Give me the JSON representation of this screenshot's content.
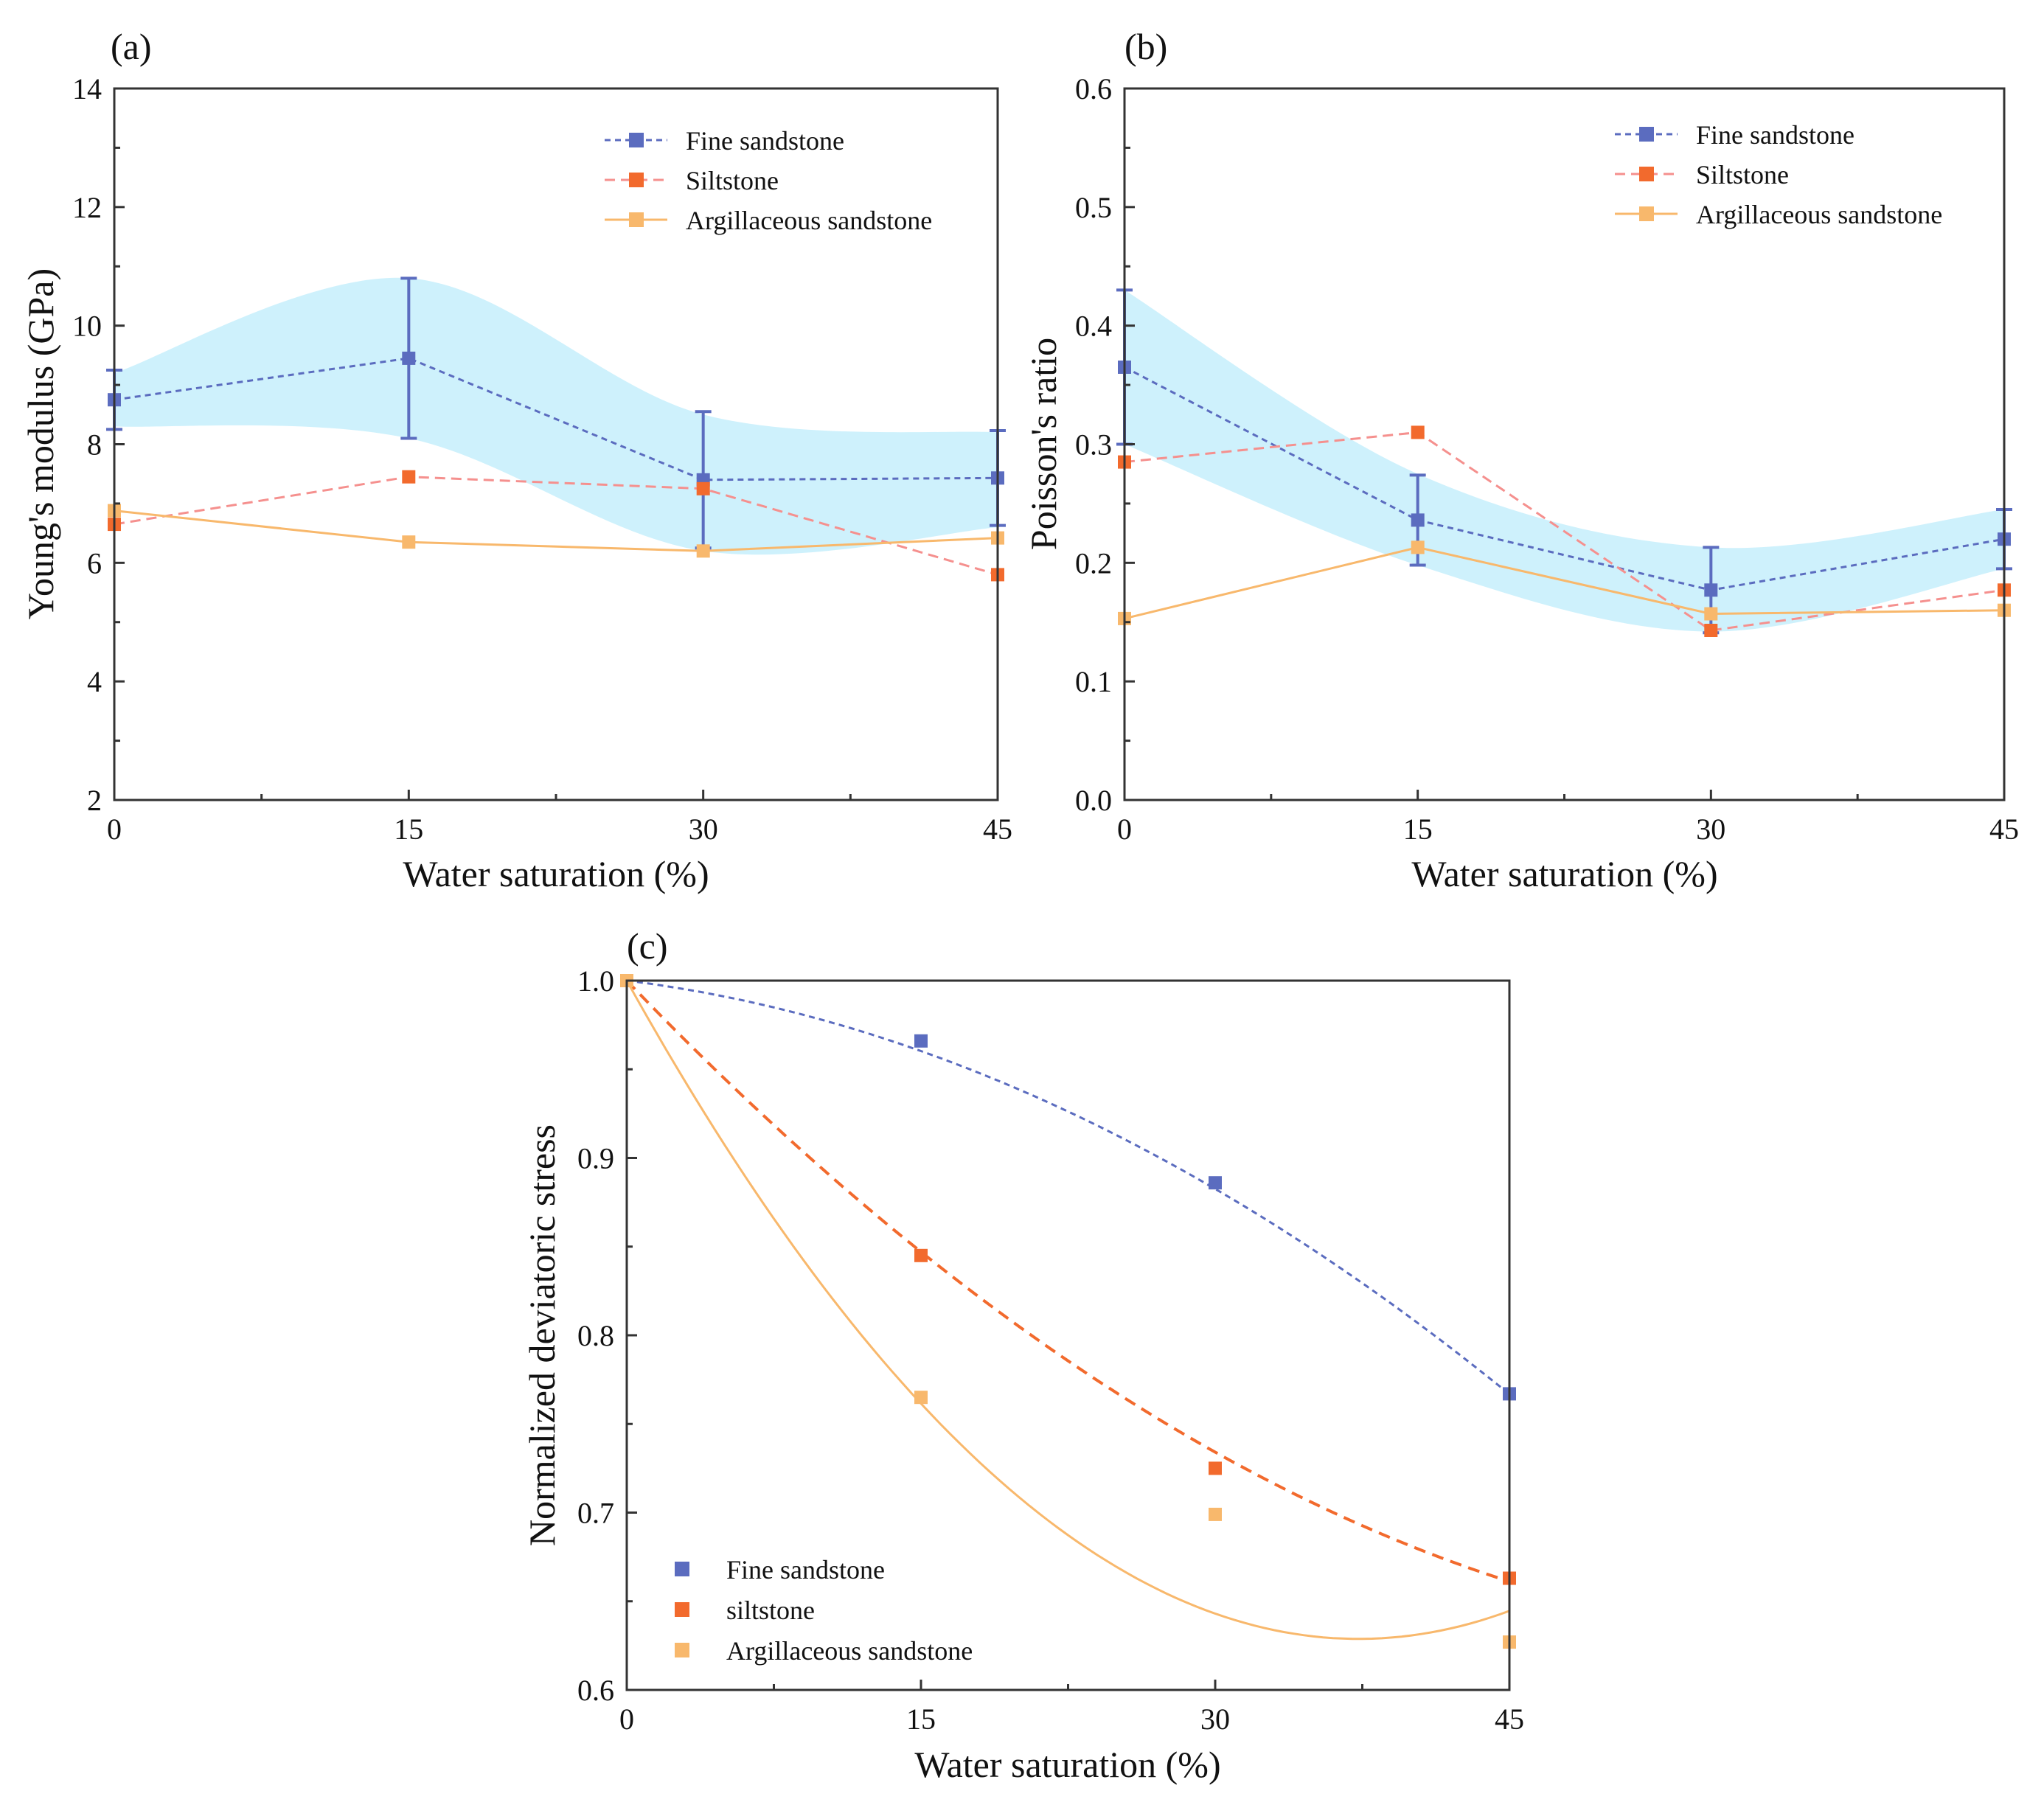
{
  "colors": {
    "fine": "#5b6cbf",
    "silt": "#f26a2d",
    "silt_a_line": "#f5908e",
    "argil": "#f8b86c",
    "band": "#c6eefb",
    "axis": "#333333"
  },
  "chart_data": [
    {
      "id": "a",
      "panel_label": "(a)",
      "type": "line",
      "xlabel": "Water saturation (%)",
      "ylabel": "Young's modulus (GPa)",
      "xlim": [
        0,
        45
      ],
      "ylim": [
        2,
        14
      ],
      "xticks": [
        0,
        15,
        30,
        45
      ],
      "xtick_labels": [
        "0",
        "15",
        "30",
        "45"
      ],
      "yticks": [
        2,
        4,
        6,
        8,
        10,
        12,
        14
      ],
      "ytick_labels": [
        "2",
        "4",
        "6",
        "8",
        "10",
        "12",
        "14"
      ],
      "legend": {
        "position": "top-right",
        "entries": [
          "Fine sandstone",
          "Siltstone",
          "Argillaceous sandstone"
        ]
      },
      "x": [
        0,
        15,
        30,
        45
      ],
      "band": {
        "series": "Fine sandstone",
        "upper": [
          9.2,
          10.8,
          8.5,
          8.2
        ],
        "lower": [
          8.3,
          8.1,
          6.2,
          6.6
        ]
      },
      "series": [
        {
          "name": "Fine sandstone",
          "values": [
            8.75,
            9.45,
            7.4,
            7.43
          ],
          "error": [
            0.5,
            1.35,
            1.15,
            0.8
          ]
        },
        {
          "name": "Siltstone",
          "values": [
            6.65,
            7.45,
            7.25,
            5.8
          ]
        },
        {
          "name": "Argillaceous sandstone",
          "values": [
            6.88,
            6.35,
            6.2,
            6.42
          ]
        }
      ]
    },
    {
      "id": "b",
      "panel_label": "(b)",
      "type": "line",
      "xlabel": "Water saturation (%)",
      "ylabel": "Poisson's ratio",
      "xlim": [
        0,
        45
      ],
      "ylim": [
        0,
        0.6
      ],
      "xticks": [
        0,
        15,
        30,
        45
      ],
      "xtick_labels": [
        "0",
        "15",
        "30",
        "45"
      ],
      "yticks": [
        0,
        0.1,
        0.2,
        0.3,
        0.4,
        0.5,
        0.6
      ],
      "ytick_labels": [
        "0.0",
        "0.1",
        "0.2",
        "0.3",
        "0.4",
        "0.5",
        "0.6"
      ],
      "legend": {
        "position": "top-right",
        "entries": [
          "Fine sandstone",
          "Siltstone",
          "Argillaceous sandstone"
        ]
      },
      "x": [
        0,
        15,
        30,
        45
      ],
      "band": {
        "series": "Fine sandstone",
        "upper": [
          0.43,
          0.275,
          0.213,
          0.245
        ],
        "lower": [
          0.3,
          0.198,
          0.142,
          0.195
        ]
      },
      "series": [
        {
          "name": "Fine sandstone",
          "values": [
            0.365,
            0.236,
            0.177,
            0.22
          ],
          "error": [
            0.065,
            0.038,
            0.036,
            0.025
          ]
        },
        {
          "name": "Siltstone",
          "values": [
            0.285,
            0.31,
            0.143,
            0.177
          ]
        },
        {
          "name": "Argillaceous sandstone",
          "values": [
            0.153,
            0.213,
            0.157,
            0.16
          ]
        }
      ]
    },
    {
      "id": "c",
      "panel_label": "(c)",
      "type": "scatter",
      "xlabel": "Water saturation (%)",
      "ylabel": "Normalized deviatoric stress",
      "xlim": [
        0,
        45
      ],
      "ylim": [
        0.6,
        1.0
      ],
      "xticks": [
        0,
        15,
        30,
        45
      ],
      "xtick_labels": [
        "0",
        "15",
        "30",
        "45"
      ],
      "yticks": [
        0.6,
        0.7,
        0.8,
        0.9,
        1.0
      ],
      "ytick_labels": [
        "0.6",
        "0.7",
        "0.8",
        "0.9",
        "1.0"
      ],
      "legend": {
        "position": "bottom-left",
        "entries": [
          "Fine sandstone",
          "siltstone",
          "Argillaceous sandstone"
        ]
      },
      "x": [
        0,
        15,
        30,
        45
      ],
      "series": [
        {
          "name": "Fine sandstone",
          "values": [
            1.0,
            0.966,
            0.886,
            0.767
          ],
          "fit": {
            "type": "quadratic",
            "coef": [
              1.0,
              -0.00138,
              -8.45e-05
            ]
          }
        },
        {
          "name": "siltstone",
          "values": [
            1.0,
            0.845,
            0.725,
            0.663
          ],
          "fit": {
            "type": "quadratic",
            "coef": [
              1.0,
              -0.01153,
              8.89e-05
            ]
          }
        },
        {
          "name": "Argillaceous sandstone",
          "values": [
            1.0,
            0.765,
            0.699,
            0.627
          ],
          "fit": {
            "type": "quadratic",
            "coef": [
              1.0,
              -0.0199,
              0.0002667
            ]
          }
        }
      ]
    }
  ]
}
